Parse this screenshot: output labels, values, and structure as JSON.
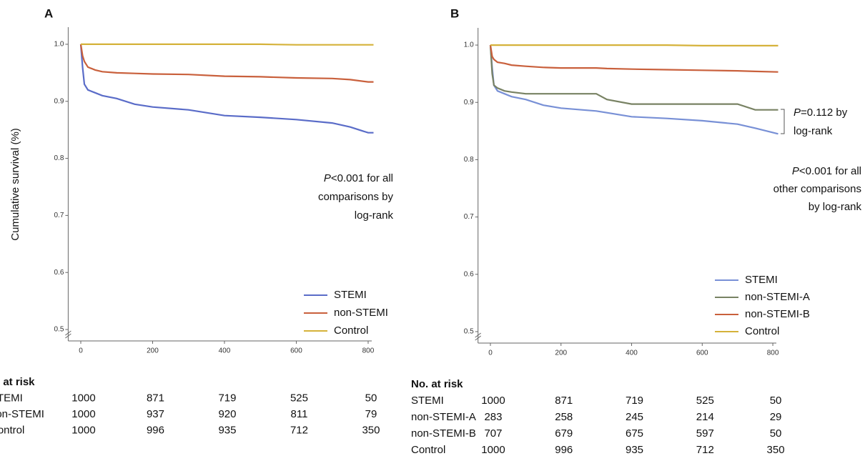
{
  "chart_data": [
    {
      "type": "line",
      "title": "A",
      "y_label": "Cumulative survival (%)",
      "x": [
        0,
        5,
        10,
        20,
        40,
        60,
        100,
        150,
        200,
        300,
        400,
        500,
        600,
        700,
        750,
        800,
        815
      ],
      "series": [
        {
          "name": "STEMI",
          "color": "#5a6cc8",
          "values": [
            1.0,
            0.96,
            0.93,
            0.92,
            0.915,
            0.91,
            0.905,
            0.895,
            0.89,
            0.885,
            0.875,
            0.872,
            0.868,
            0.862,
            0.855,
            0.845,
            0.845
          ]
        },
        {
          "name": "non-STEMI",
          "color": "#c9603c",
          "values": [
            1.0,
            0.98,
            0.97,
            0.96,
            0.955,
            0.952,
            0.95,
            0.949,
            0.948,
            0.947,
            0.944,
            0.943,
            0.941,
            0.94,
            0.938,
            0.934,
            0.934
          ]
        },
        {
          "name": "Control",
          "color": "#d5b23a",
          "values": [
            1.0,
            1.0,
            1.0,
            1.0,
            1.0,
            1.0,
            1.0,
            1.0,
            1.0,
            1.0,
            1.0,
            1.0,
            0.999,
            0.999,
            0.999,
            0.999,
            0.999
          ]
        }
      ],
      "xlim": [
        -35,
        810
      ],
      "xticks": [
        0,
        200,
        400,
        600,
        800
      ],
      "ylim": [
        0.48,
        1.03
      ],
      "yticks": [
        {
          "value": 0.5,
          "label": "0.5"
        },
        {
          "value": 0.6,
          "label": "0.6"
        },
        {
          "value": 0.7,
          "label": "0.7"
        },
        {
          "value": 0.8,
          "label": "0.8"
        },
        {
          "value": 0.9,
          "label": "0.9"
        },
        {
          "value": 1,
          "label": "1.0"
        }
      ],
      "legend": "lower right",
      "annotations": [
        [
          {
            "italic": "P",
            "text": "<0.001 for all"
          },
          "comparisons by",
          "log-rank"
        ]
      ],
      "risk_table": {
        "title": "No. at risk",
        "rows": [
          {
            "name": "STEMI",
            "values": [
              1000,
              871,
              719,
              525,
              50
            ]
          },
          {
            "name": "non-STEMI",
            "values": [
              1000,
              937,
              920,
              811,
              79
            ]
          },
          {
            "name": "Control",
            "values": [
              1000,
              996,
              935,
              712,
              350
            ]
          }
        ]
      }
    },
    {
      "type": "line",
      "title": "B",
      "x": [
        0,
        5,
        10,
        20,
        40,
        60,
        100,
        150,
        200,
        300,
        330,
        400,
        500,
        600,
        700,
        750,
        815
      ],
      "series": [
        {
          "name": "STEMI",
          "color": "#7890d6",
          "values": [
            1.0,
            0.96,
            0.93,
            0.92,
            0.915,
            0.91,
            0.905,
            0.895,
            0.89,
            0.885,
            0.882,
            0.875,
            0.872,
            0.868,
            0.862,
            0.855,
            0.845
          ]
        },
        {
          "name": "non-STEMI-A",
          "color": "#788263",
          "values": [
            1.0,
            0.95,
            0.93,
            0.925,
            0.92,
            0.918,
            0.915,
            0.915,
            0.915,
            0.915,
            0.905,
            0.897,
            0.897,
            0.897,
            0.897,
            0.887,
            0.887
          ]
        },
        {
          "name": "non-STEMI-B",
          "color": "#c9603c",
          "values": [
            1.0,
            0.98,
            0.975,
            0.97,
            0.968,
            0.965,
            0.963,
            0.961,
            0.96,
            0.96,
            0.959,
            0.958,
            0.957,
            0.956,
            0.955,
            0.954,
            0.953
          ]
        },
        {
          "name": "Control",
          "color": "#d5b23a",
          "values": [
            1.0,
            1.0,
            1.0,
            1.0,
            1.0,
            1.0,
            1.0,
            1.0,
            1.0,
            1.0,
            1.0,
            1.0,
            1.0,
            0.999,
            0.999,
            0.999,
            0.999
          ]
        }
      ],
      "xlim": [
        -35,
        810
      ],
      "xticks": [
        0,
        200,
        400,
        600,
        800
      ],
      "ylim": [
        0.48,
        1.03
      ],
      "yticks": [
        {
          "value": 0.5,
          "label": "0.5"
        },
        {
          "value": 0.6,
          "label": "0.6"
        },
        {
          "value": 0.7,
          "label": "0.7"
        },
        {
          "value": 0.8,
          "label": "0.8"
        },
        {
          "value": 0.9,
          "label": "0.9"
        },
        {
          "value": 1,
          "label": "1.0"
        }
      ],
      "legend": "lower right",
      "annotations": [
        [
          {
            "italic": "P",
            "text": "=0.112 by"
          },
          "log-rank"
        ],
        [
          {
            "italic": "P",
            "text": "<0.001 for all"
          },
          "other comparisons",
          "by log-rank"
        ]
      ],
      "risk_table": {
        "title": "No. at risk",
        "rows": [
          {
            "name": "STEMI",
            "values": [
              1000,
              871,
              719,
              525,
              50
            ]
          },
          {
            "name": "non-STEMI-A",
            "values": [
              283,
              258,
              245,
              214,
              29
            ]
          },
          {
            "name": "non-STEMI-B",
            "values": [
              707,
              679,
              675,
              597,
              50
            ]
          },
          {
            "name": "Control",
            "values": [
              1000,
              996,
              935,
              712,
              350
            ]
          }
        ]
      }
    }
  ]
}
